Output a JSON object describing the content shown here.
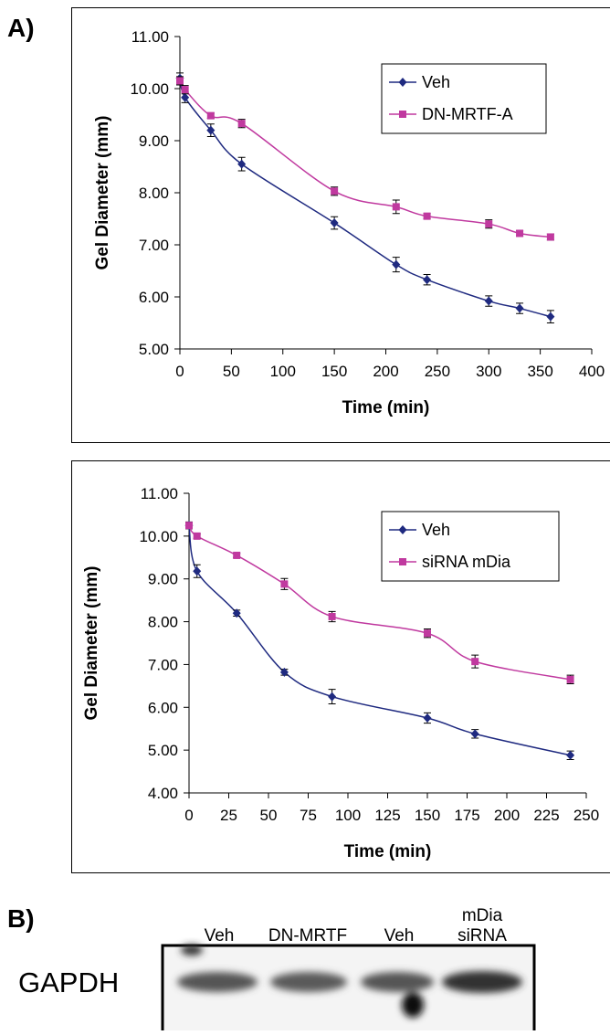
{
  "panel_labels": [
    "A)",
    "B)"
  ],
  "chart_data": [
    {
      "type": "line",
      "xlabel": "Time (min)",
      "ylabel": "Gel Diameter (mm)",
      "x": [
        0,
        5,
        30,
        60,
        150,
        210,
        240,
        300,
        330,
        360
      ],
      "series": [
        {
          "name": "Veh",
          "color": "#1f2a80",
          "marker": "diamond",
          "values": [
            10.2,
            9.83,
            9.2,
            8.55,
            7.42,
            6.62,
            6.33,
            5.92,
            5.78,
            5.62
          ],
          "errors": [
            0.1,
            0.1,
            0.12,
            0.13,
            0.12,
            0.14,
            0.1,
            0.1,
            0.1,
            0.12
          ]
        },
        {
          "name": "DN-MRTF-A",
          "color": "#c0399f",
          "marker": "square",
          "values": [
            10.15,
            9.98,
            9.48,
            9.33,
            8.03,
            7.73,
            7.55,
            7.4,
            7.22,
            7.15
          ],
          "errors": [
            0.08,
            0.08,
            0.05,
            0.08,
            0.08,
            0.13,
            0.05,
            0.08,
            0.05,
            0.06
          ]
        }
      ],
      "xlim": [
        0,
        400
      ],
      "xticks": [
        0,
        50,
        100,
        150,
        200,
        250,
        300,
        350,
        400
      ],
      "ylim": [
        5,
        11
      ],
      "yticks": [
        {
          "value": 5,
          "label": "5.00"
        },
        {
          "value": 6,
          "label": "6.00"
        },
        {
          "value": 7,
          "label": "7.00"
        },
        {
          "value": 8,
          "label": "8.00"
        },
        {
          "value": 9,
          "label": "9.00"
        },
        {
          "value": 10,
          "label": "10.00"
        },
        {
          "value": 11,
          "label": "11.00"
        }
      ],
      "legend": "upper right",
      "grid": false
    },
    {
      "type": "line",
      "xlabel": "Time (min)",
      "ylabel": "Gel Diameter (mm)",
      "x": [
        0,
        5,
        30,
        60,
        90,
        150,
        180,
        240
      ],
      "series": [
        {
          "name": "Veh",
          "color": "#1f2a80",
          "marker": "diamond",
          "values": [
            10.25,
            9.18,
            8.2,
            6.82,
            6.25,
            5.75,
            5.38,
            4.88
          ],
          "errors": [
            0.08,
            0.15,
            0.07,
            0.07,
            0.17,
            0.12,
            0.1,
            0.1
          ]
        },
        {
          "name": "siRNA mDia",
          "color": "#c0399f",
          "marker": "square",
          "values": [
            10.25,
            10.0,
            9.55,
            8.88,
            8.12,
            7.73,
            7.07,
            6.65
          ],
          "errors": [
            0.05,
            0.05,
            0.05,
            0.13,
            0.12,
            0.1,
            0.15,
            0.1
          ]
        }
      ],
      "xlim": [
        0,
        250
      ],
      "xticks": [
        0,
        25,
        50,
        75,
        100,
        125,
        150,
        175,
        200,
        225,
        250
      ],
      "ylim": [
        4,
        11
      ],
      "yticks": [
        {
          "value": 4,
          "label": "4.00"
        },
        {
          "value": 5,
          "label": "5.00"
        },
        {
          "value": 6,
          "label": "6.00"
        },
        {
          "value": 7,
          "label": "7.00"
        },
        {
          "value": 8,
          "label": "8.00"
        },
        {
          "value": 9,
          "label": "9.00"
        },
        {
          "value": 10,
          "label": "10.00"
        },
        {
          "value": 11,
          "label": "11.00"
        }
      ],
      "legend": "upper right",
      "grid": false
    }
  ],
  "blot": {
    "row_label": "GAPDH",
    "lanes": [
      [
        "Veh"
      ],
      [
        "DN-MRTF"
      ],
      [
        "Veh"
      ],
      [
        "mDia",
        "siRNA"
      ]
    ]
  }
}
